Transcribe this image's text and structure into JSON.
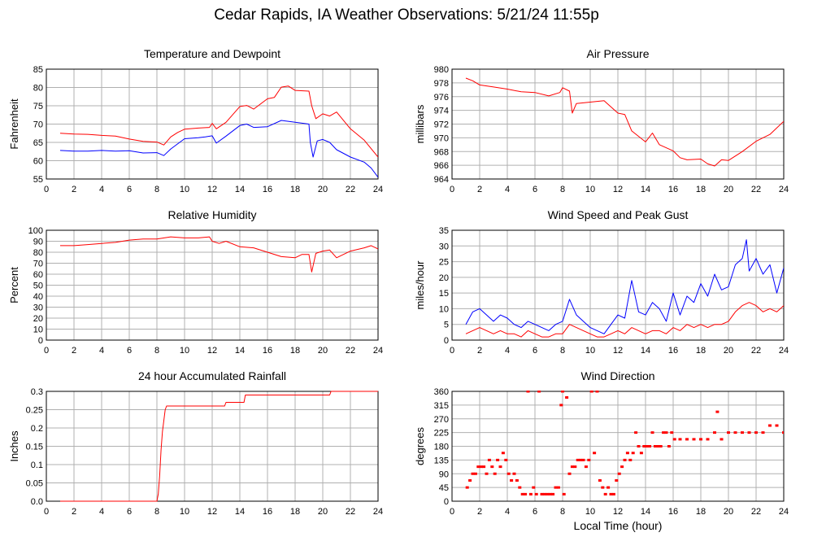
{
  "title": "Cedar Rapids, IA Weather Observations: 5/21/24 11:55p",
  "x_axis_label": "Local Time (hour)",
  "colors": {
    "red": "#ff0000",
    "blue": "#0000ff",
    "grid": "#b0b0b0"
  },
  "chart_data": [
    {
      "id": "temp",
      "type": "line",
      "title": "Temperature and Dewpoint",
      "ylabel": "Fahrenheit",
      "xlim": [
        0,
        24
      ],
      "ylim": [
        55,
        85
      ],
      "yticks": [
        55,
        60,
        65,
        70,
        75,
        80,
        85
      ],
      "xticks": [
        0,
        2,
        4,
        6,
        8,
        10,
        12,
        14,
        16,
        18,
        20,
        22,
        24
      ],
      "grid": true,
      "series": [
        {
          "color": "red",
          "x": [
            1,
            2,
            3,
            4,
            5,
            6,
            7,
            8,
            8.5,
            9,
            9.5,
            10,
            11,
            11.8,
            12,
            12.3,
            13,
            14,
            14.5,
            15,
            16,
            16.5,
            17,
            17.5,
            18,
            19,
            19.2,
            19.5,
            20,
            20.5,
            21,
            22,
            23,
            24
          ],
          "y": [
            67.5,
            67.3,
            67.2,
            66.9,
            66.7,
            65.9,
            65.3,
            65.1,
            64.3,
            66.5,
            67.7,
            68.6,
            68.9,
            69.1,
            70.2,
            68.7,
            70.5,
            74.8,
            75.1,
            74.1,
            76.9,
            77.3,
            80.1,
            80.4,
            79.2,
            79.0,
            75.0,
            71.5,
            72.8,
            72.2,
            73.3,
            68.7,
            65.6,
            61.0
          ]
        },
        {
          "color": "blue",
          "x": [
            1,
            2,
            3,
            4,
            5,
            6,
            7,
            8,
            8.5,
            9,
            10,
            11,
            11.5,
            12,
            12.3,
            13,
            14,
            14.5,
            15,
            16,
            17,
            18,
            19,
            19.1,
            19.3,
            19.6,
            20,
            20.5,
            21,
            22,
            23,
            23.5,
            24
          ],
          "y": [
            62.8,
            62.6,
            62.6,
            62.8,
            62.6,
            62.7,
            62.1,
            62.2,
            61.4,
            63.2,
            66.0,
            66.3,
            66.5,
            66.8,
            64.8,
            66.7,
            69.6,
            70.0,
            69.1,
            69.3,
            71.0,
            70.5,
            70.0,
            65.0,
            61.0,
            65.4,
            65.8,
            65.0,
            63.0,
            61.0,
            59.6,
            58.0,
            55.5
          ]
        }
      ]
    },
    {
      "id": "pressure",
      "type": "line",
      "title": "Air Pressure",
      "ylabel": "millibars",
      "xlim": [
        0,
        24
      ],
      "ylim": [
        964,
        980
      ],
      "yticks": [
        964,
        966,
        968,
        970,
        972,
        974,
        976,
        978,
        980
      ],
      "xticks": [
        0,
        2,
        4,
        6,
        8,
        10,
        12,
        14,
        16,
        18,
        20,
        22,
        24
      ],
      "grid": true,
      "series": [
        {
          "color": "red",
          "x": [
            1,
            1.5,
            2,
            3,
            4,
            5,
            6,
            7,
            7.8,
            8,
            8.5,
            8.7,
            9,
            10,
            11,
            11.5,
            12,
            12.5,
            13,
            14,
            14.5,
            15,
            16,
            16.5,
            17,
            18,
            18.5,
            19,
            19.5,
            20,
            21,
            22,
            23,
            24
          ],
          "y": [
            978.7,
            978.3,
            977.7,
            977.4,
            977.1,
            976.7,
            976.6,
            976.1,
            976.6,
            977.3,
            976.8,
            973.6,
            975.0,
            975.2,
            975.4,
            974.5,
            973.6,
            973.4,
            971.0,
            969.4,
            970.7,
            969.0,
            968.1,
            967.1,
            966.8,
            966.9,
            966.2,
            965.9,
            966.8,
            966.7,
            968.0,
            969.5,
            970.5,
            972.4
          ]
        }
      ]
    },
    {
      "id": "humidity",
      "type": "line",
      "title": "Relative Humidity",
      "ylabel": "Percent",
      "xlim": [
        0,
        24
      ],
      "ylim": [
        0,
        100
      ],
      "yticks": [
        0,
        10,
        20,
        30,
        40,
        50,
        60,
        70,
        80,
        90,
        100
      ],
      "xticks": [
        0,
        2,
        4,
        6,
        8,
        10,
        12,
        14,
        16,
        18,
        20,
        22,
        24
      ],
      "grid": true,
      "series": [
        {
          "color": "red",
          "x": [
            1,
            2,
            3,
            4,
            5,
            6,
            7,
            8,
            9,
            10,
            11,
            11.8,
            12,
            12.5,
            13,
            14,
            15,
            16,
            17,
            18,
            18.5,
            19,
            19.2,
            19.5,
            20,
            20.5,
            21,
            22,
            23,
            23.5,
            24
          ],
          "y": [
            86,
            86,
            87,
            88,
            89,
            91,
            92,
            92,
            94,
            93,
            93,
            94,
            90,
            88,
            90,
            85,
            84,
            80,
            76,
            75,
            78,
            78,
            62,
            79,
            81,
            82,
            75,
            81,
            84,
            86,
            83
          ]
        }
      ]
    },
    {
      "id": "wind",
      "type": "line",
      "title": "Wind Speed and Peak Gust",
      "ylabel": "miles/hour",
      "xlim": [
        0,
        24
      ],
      "ylim": [
        0,
        35
      ],
      "yticks": [
        0,
        5,
        10,
        15,
        20,
        25,
        30,
        35
      ],
      "xticks": [
        0,
        2,
        4,
        6,
        8,
        10,
        12,
        14,
        16,
        18,
        20,
        22,
        24
      ],
      "grid": true,
      "series": [
        {
          "color": "blue",
          "x": [
            1,
            1.5,
            2,
            2.5,
            3,
            3.5,
            4,
            4.5,
            5,
            5.5,
            6,
            6.5,
            7,
            7.5,
            8,
            8.5,
            9,
            9.5,
            10,
            10.5,
            11,
            11.5,
            12,
            12.5,
            13,
            13.5,
            14,
            14.5,
            15,
            15.5,
            16,
            16.5,
            17,
            17.5,
            18,
            18.5,
            19,
            19.5,
            20,
            20.5,
            21,
            21.3,
            21.5,
            22,
            22.5,
            23,
            23.5,
            24
          ],
          "y": [
            5,
            9,
            10,
            8,
            6,
            8,
            7,
            5,
            4,
            6,
            5,
            4,
            3,
            5,
            6,
            13,
            8,
            6,
            4,
            3,
            2,
            5,
            8,
            7,
            19,
            9,
            8,
            12,
            10,
            6,
            15,
            8,
            14,
            12,
            18,
            14,
            21,
            16,
            17,
            24,
            26,
            32,
            22,
            26,
            21,
            24,
            15,
            23
          ]
        },
        {
          "color": "red",
          "x": [
            1,
            1.5,
            2,
            2.5,
            3,
            3.5,
            4,
            4.5,
            5,
            5.5,
            6,
            6.5,
            7,
            7.5,
            8,
            8.5,
            9,
            9.5,
            10,
            10.5,
            11,
            11.5,
            12,
            12.5,
            13,
            13.5,
            14,
            14.5,
            15,
            15.5,
            16,
            16.5,
            17,
            17.5,
            18,
            18.5,
            19,
            19.5,
            20,
            20.5,
            21,
            21.5,
            22,
            22.5,
            23,
            23.5,
            24
          ],
          "y": [
            2,
            3,
            4,
            3,
            2,
            3,
            2,
            2,
            1,
            3,
            2,
            1,
            1,
            2,
            2,
            5,
            4,
            3,
            2,
            1,
            1,
            2,
            3,
            2,
            4,
            3,
            2,
            3,
            3,
            2,
            4,
            3,
            5,
            4,
            5,
            4,
            5,
            5,
            6,
            9,
            11,
            12,
            11,
            9,
            10,
            9,
            11
          ]
        }
      ]
    },
    {
      "id": "rain",
      "type": "line",
      "title": "24 hour Accumulated Rainfall",
      "ylabel": "Inches",
      "xlim": [
        0,
        24
      ],
      "ylim": [
        0,
        0.3
      ],
      "yticks": [
        0,
        0.05,
        0.1,
        0.15,
        0.2,
        0.25,
        0.3
      ],
      "ytick_labels": [
        "0.0",
        "0.05",
        "0.1",
        "0.15",
        "0.2",
        "0.25",
        "0.3"
      ],
      "xticks": [
        0,
        2,
        4,
        6,
        8,
        10,
        12,
        14,
        16,
        18,
        20,
        22,
        24
      ],
      "grid": true,
      "series": [
        {
          "color": "red",
          "step": true,
          "x": [
            1,
            8,
            8.1,
            8.2,
            8.3,
            8.4,
            8.5,
            8.6,
            8.7,
            12.9,
            13.0,
            14.3,
            14.4,
            20.5,
            20.6,
            24
          ],
          "y": [
            0,
            0,
            0.02,
            0.07,
            0.14,
            0.19,
            0.22,
            0.25,
            0.26,
            0.26,
            0.27,
            0.27,
            0.29,
            0.29,
            0.3,
            0.3
          ]
        }
      ]
    },
    {
      "id": "direction",
      "type": "scatter",
      "title": "Wind Direction",
      "ylabel": "degrees",
      "xlim": [
        0,
        24
      ],
      "ylim": [
        0,
        360
      ],
      "yticks": [
        0,
        45,
        90,
        135,
        180,
        225,
        270,
        315,
        360
      ],
      "xticks": [
        0,
        2,
        4,
        6,
        8,
        10,
        12,
        14,
        16,
        18,
        20,
        22,
        24
      ],
      "grid": true,
      "series": [
        {
          "color": "red",
          "x": [
            1.1,
            1.3,
            1.5,
            1.7,
            1.9,
            2.1,
            2.3,
            2.5,
            2.7,
            2.9,
            3.1,
            3.3,
            3.5,
            3.7,
            3.9,
            4.1,
            4.3,
            4.5,
            4.7,
            4.9,
            5.1,
            5.3,
            5.5,
            5.7,
            5.9,
            6.1,
            6.3,
            6.5,
            6.7,
            6.9,
            7.1,
            7.3,
            7.5,
            7.7,
            7.9,
            8.0,
            8.1,
            8.3,
            8.5,
            8.7,
            8.9,
            9.1,
            9.3,
            9.5,
            9.7,
            9.9,
            10.1,
            10.3,
            10.5,
            10.7,
            10.9,
            11.1,
            11.3,
            11.5,
            11.7,
            11.9,
            12.1,
            12.3,
            12.5,
            12.7,
            12.9,
            13.1,
            13.3,
            13.5,
            13.7,
            13.9,
            14.1,
            14.3,
            14.5,
            14.7,
            14.9,
            15.1,
            15.3,
            15.5,
            15.7,
            15.9,
            16.1,
            16.5,
            17,
            17.5,
            18,
            18.5,
            19,
            19.2,
            19.5,
            20,
            20.5,
            21,
            21.5,
            22,
            22.5,
            23,
            23.5,
            24
          ],
          "y": [
            45,
            68,
            90,
            90,
            113,
            113,
            113,
            90,
            135,
            113,
            90,
            135,
            113,
            158,
            135,
            90,
            68,
            90,
            68,
            45,
            23,
            23,
            360,
            23,
            45,
            23,
            360,
            23,
            23,
            23,
            23,
            23,
            45,
            45,
            315,
            360,
            23,
            340,
            90,
            113,
            113,
            135,
            135,
            135,
            113,
            135,
            360,
            158,
            360,
            68,
            45,
            23,
            45,
            23,
            23,
            68,
            90,
            113,
            135,
            158,
            135,
            158,
            225,
            180,
            158,
            180,
            180,
            180,
            225,
            180,
            180,
            180,
            225,
            225,
            180,
            225,
            203,
            203,
            203,
            203,
            203,
            203,
            225,
            293,
            203,
            225,
            225,
            225,
            225,
            225,
            225,
            248,
            248,
            225
          ]
        }
      ]
    }
  ]
}
